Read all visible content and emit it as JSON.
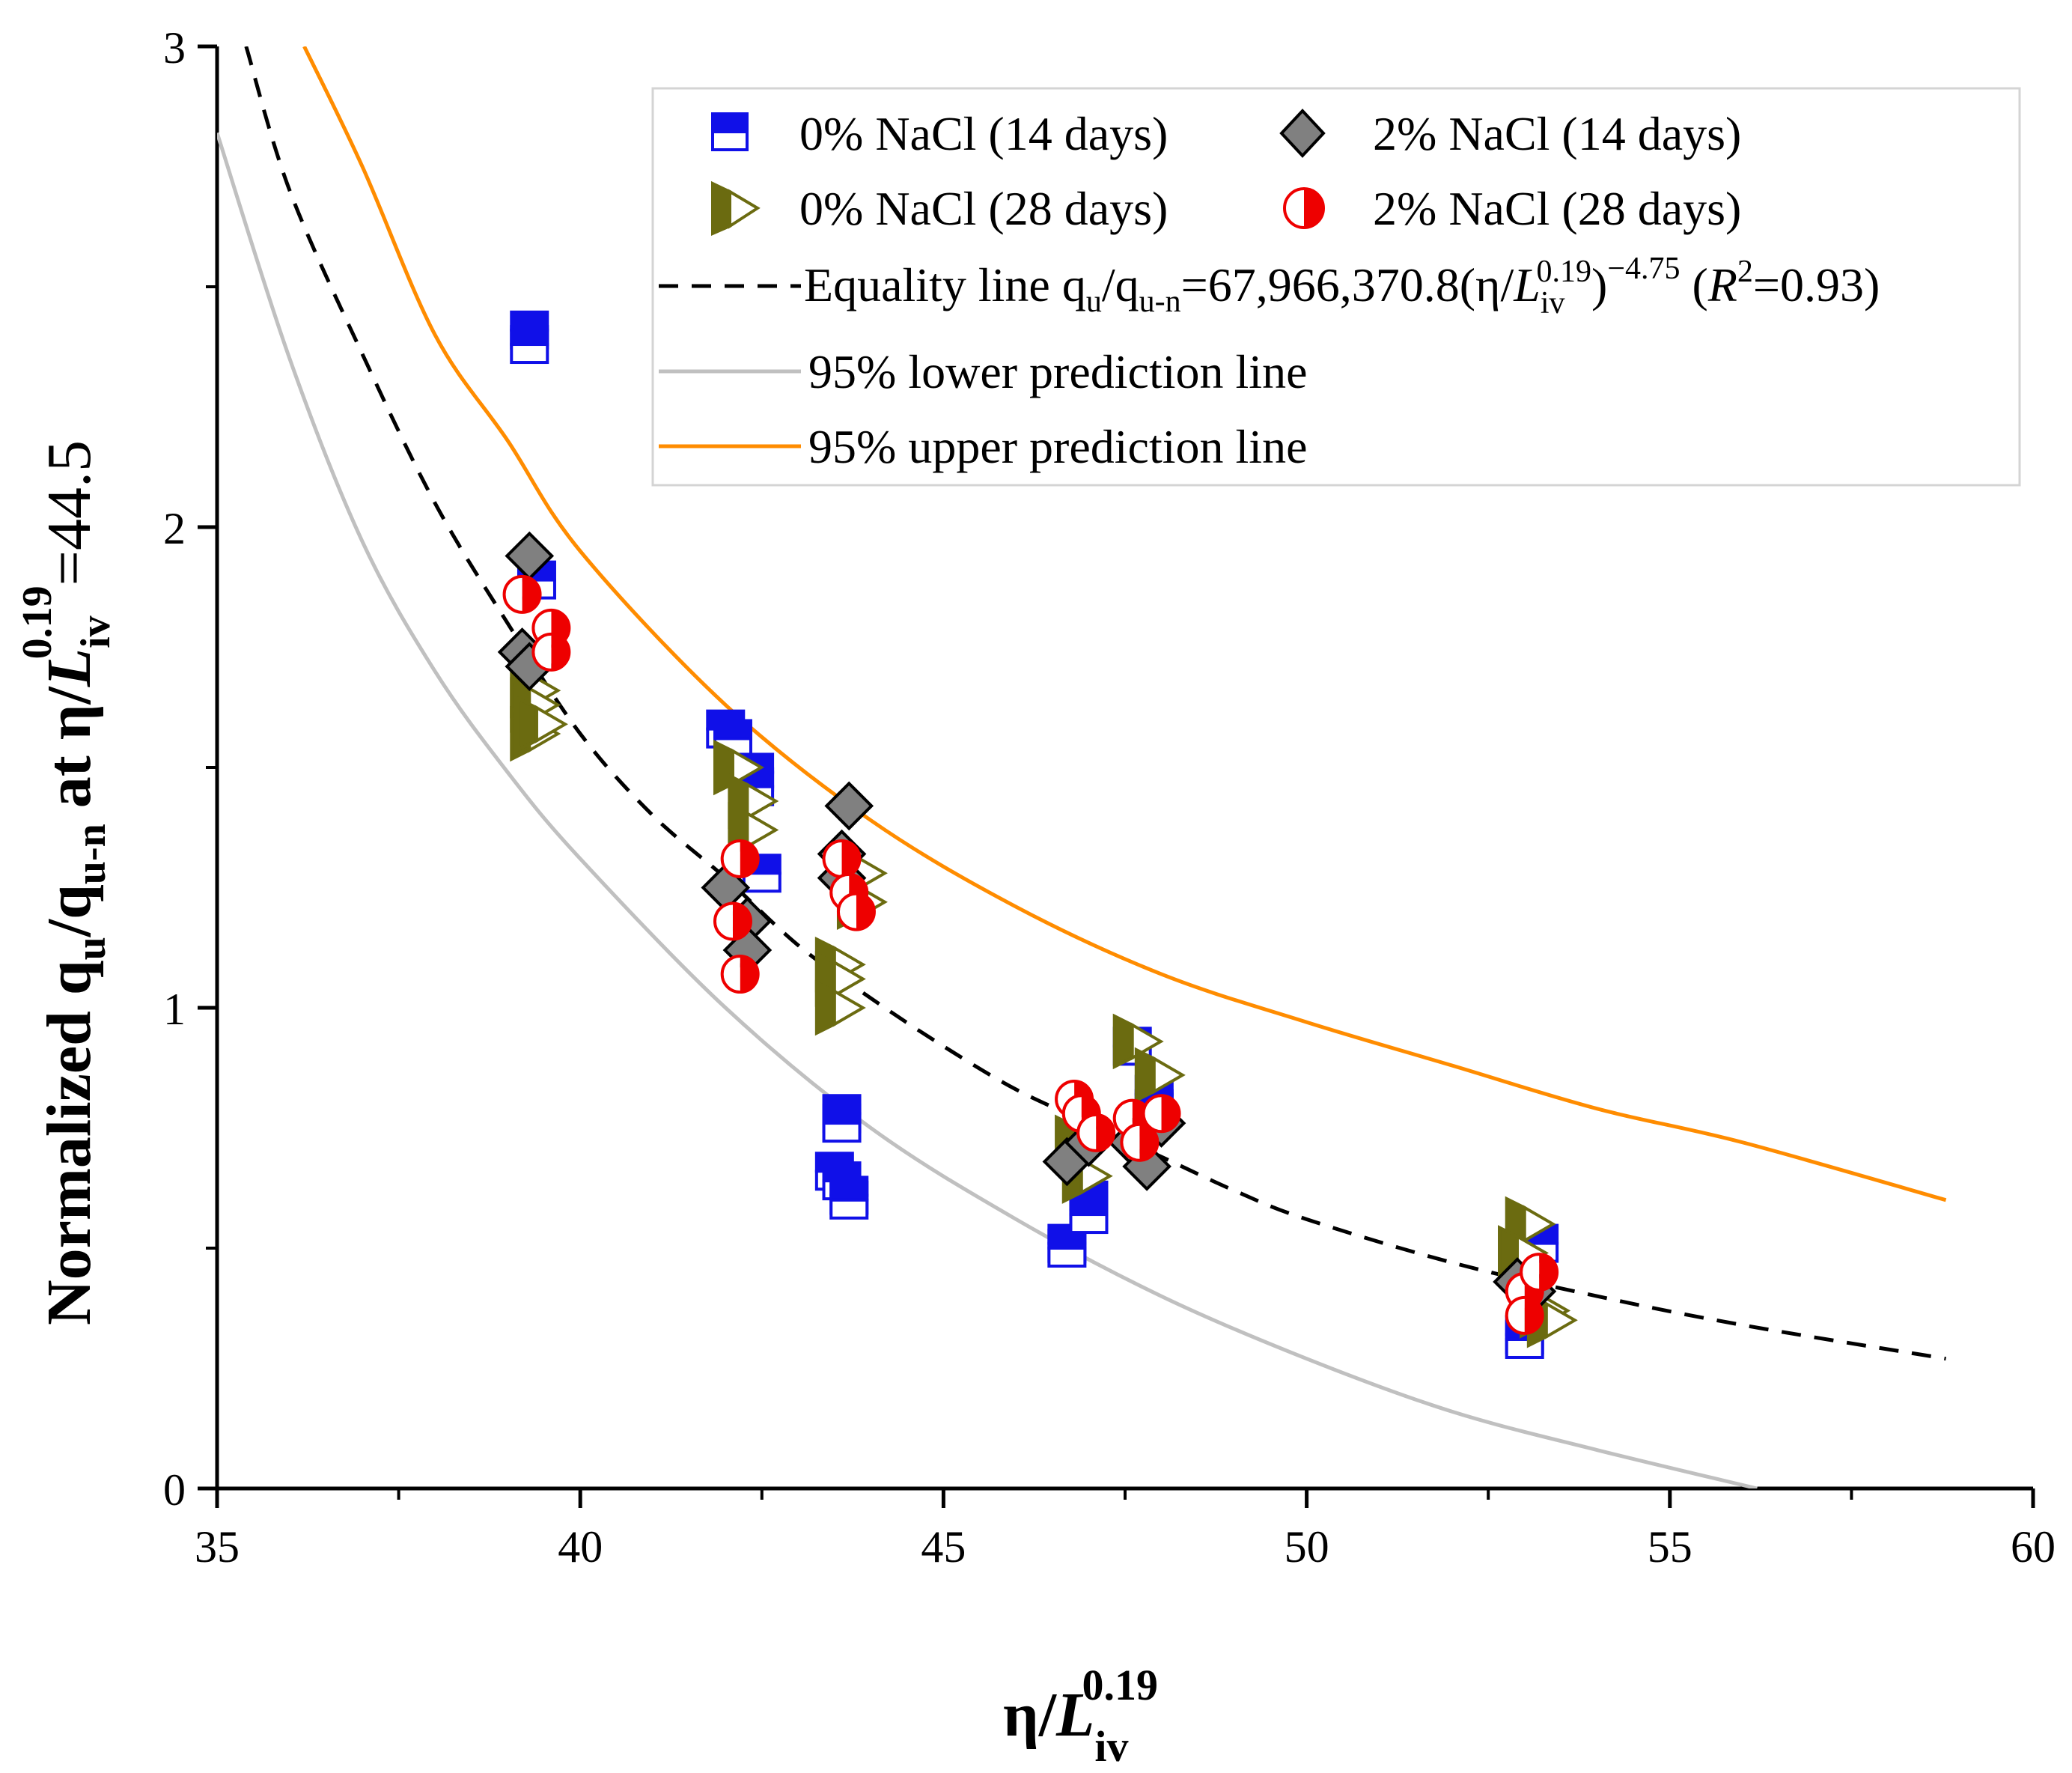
{
  "chart_data": {
    "type": "scatter",
    "xlabel": "η/L_iv^0.19",
    "ylabel": "Normalized q_u/q_u-n at η/L_iv^0.19=44.5",
    "xlim": [
      35,
      60
    ],
    "ylim": [
      0,
      3
    ],
    "x_ticks": [
      "35",
      "40",
      "45",
      "50",
      "55",
      "60"
    ],
    "y_ticks": [
      "0",
      "1",
      "2",
      "3"
    ],
    "grid": false,
    "legend_position": "top-right",
    "series": [
      {
        "name": "0% NaCl (14 days)",
        "marker": "half-square",
        "color": "#1010e8",
        "points": [
          [
            39.3,
            2.41
          ],
          [
            39.3,
            2.38
          ],
          [
            39.4,
            1.89
          ],
          [
            42.0,
            1.58
          ],
          [
            42.1,
            1.56
          ],
          [
            42.4,
            1.49
          ],
          [
            42.4,
            1.46
          ],
          [
            42.5,
            1.28
          ],
          [
            43.6,
            0.78
          ],
          [
            43.6,
            0.76
          ],
          [
            43.5,
            0.66
          ],
          [
            43.6,
            0.64
          ],
          [
            43.7,
            0.61
          ],
          [
            43.7,
            0.6
          ],
          [
            46.7,
            0.51
          ],
          [
            46.7,
            0.5
          ],
          [
            47.0,
            0.6
          ],
          [
            47.0,
            0.58
          ],
          [
            47.0,
            0.57
          ],
          [
            47.6,
            0.92
          ],
          [
            47.9,
            0.82
          ],
          [
            47.9,
            0.79
          ],
          [
            53.0,
            0.32
          ],
          [
            53.0,
            0.31
          ],
          [
            53.2,
            0.51
          ]
        ]
      },
      {
        "name": "0% NaCl (28 days)",
        "marker": "half-triangle-right",
        "color": "#6b6b10",
        "points": [
          [
            39.3,
            1.66
          ],
          [
            39.3,
            1.63
          ],
          [
            39.3,
            1.57
          ],
          [
            39.4,
            1.59
          ],
          [
            42.1,
            1.5
          ],
          [
            42.3,
            1.43
          ],
          [
            42.3,
            1.37
          ],
          [
            43.5,
            1.09
          ],
          [
            43.5,
            1.06
          ],
          [
            43.5,
            1.0
          ],
          [
            43.8,
            1.28
          ],
          [
            43.8,
            1.22
          ],
          [
            47.6,
            0.93
          ],
          [
            47.9,
            0.86
          ],
          [
            46.8,
            0.72
          ],
          [
            46.9,
            0.65
          ],
          [
            53.0,
            0.55
          ],
          [
            52.9,
            0.49
          ],
          [
            53.2,
            0.37
          ],
          [
            53.3,
            0.35
          ]
        ]
      },
      {
        "name": "2% NaCl (14 days)",
        "marker": "diamond",
        "color": "#808080",
        "points": [
          [
            39.3,
            1.94
          ],
          [
            39.2,
            1.74
          ],
          [
            39.3,
            1.71
          ],
          [
            42.0,
            1.25
          ],
          [
            42.3,
            1.18
          ],
          [
            42.3,
            1.12
          ],
          [
            43.7,
            1.42
          ],
          [
            43.6,
            1.32
          ],
          [
            43.6,
            1.27
          ],
          [
            46.7,
            0.68
          ],
          [
            47.0,
            0.72
          ],
          [
            47.6,
            0.72
          ],
          [
            47.8,
            0.67
          ],
          [
            48.0,
            0.76
          ],
          [
            52.9,
            0.43
          ],
          [
            53.1,
            0.41
          ]
        ]
      },
      {
        "name": "2% NaCl (28 days)",
        "marker": "half-circle",
        "color": "#ee0000",
        "points": [
          [
            39.2,
            1.86
          ],
          [
            39.6,
            1.79
          ],
          [
            39.6,
            1.74
          ],
          [
            42.2,
            1.31
          ],
          [
            42.1,
            1.18
          ],
          [
            42.2,
            1.07
          ],
          [
            43.6,
            1.31
          ],
          [
            43.7,
            1.24
          ],
          [
            43.8,
            1.2
          ],
          [
            46.8,
            0.81
          ],
          [
            46.9,
            0.78
          ],
          [
            47.1,
            0.74
          ],
          [
            47.6,
            0.77
          ],
          [
            47.7,
            0.72
          ],
          [
            48.0,
            0.78
          ],
          [
            53.0,
            0.41
          ],
          [
            53.0,
            0.36
          ],
          [
            53.2,
            0.45
          ]
        ]
      }
    ],
    "lines": [
      {
        "name": "Equality line q_u/q_u-n=67,966,370.8(η/L_iv^0.19)^−4.75 (R^2=0.93)",
        "style": "dashed",
        "color": "#000000",
        "points": [
          [
            35.4,
            3.0
          ],
          [
            36,
            2.7
          ],
          [
            37,
            2.36
          ],
          [
            38,
            2.05
          ],
          [
            39,
            1.8
          ],
          [
            40,
            1.57
          ],
          [
            41,
            1.4
          ],
          [
            42,
            1.27
          ],
          [
            43,
            1.13
          ],
          [
            44,
            1.02
          ],
          [
            45,
            0.92
          ],
          [
            46,
            0.83
          ],
          [
            47,
            0.76
          ],
          [
            48,
            0.69
          ],
          [
            49,
            0.62
          ],
          [
            50,
            0.56
          ],
          [
            52,
            0.47
          ],
          [
            54,
            0.4
          ],
          [
            56,
            0.34
          ],
          [
            58.8,
            0.27
          ]
        ]
      },
      {
        "name": "95% lower prediction line",
        "style": "solid",
        "color": "#c0c0c0",
        "points": [
          [
            35.0,
            2.82
          ],
          [
            36,
            2.35
          ],
          [
            37,
            1.97
          ],
          [
            38,
            1.7
          ],
          [
            39,
            1.49
          ],
          [
            40,
            1.31
          ],
          [
            42,
            1.0
          ],
          [
            44,
            0.75
          ],
          [
            46,
            0.56
          ],
          [
            48,
            0.4
          ],
          [
            50,
            0.27
          ],
          [
            52,
            0.16
          ],
          [
            54,
            0.08
          ],
          [
            56.2,
            0.0
          ]
        ]
      },
      {
        "name": "95% upper prediction line",
        "style": "solid",
        "color": "#ff8c00",
        "points": [
          [
            36.2,
            3.0
          ],
          [
            37,
            2.75
          ],
          [
            38,
            2.4
          ],
          [
            39,
            2.18
          ],
          [
            40,
            1.95
          ],
          [
            42,
            1.63
          ],
          [
            44,
            1.39
          ],
          [
            46,
            1.21
          ],
          [
            48,
            1.07
          ],
          [
            50,
            0.97
          ],
          [
            52,
            0.88
          ],
          [
            54,
            0.79
          ],
          [
            56,
            0.72
          ],
          [
            58.8,
            0.6
          ]
        ]
      }
    ],
    "legend": {
      "entry_0_14": "0% NaCl (14 days)",
      "entry_0_28": "0% NaCl (28 days)",
      "entry_2_14": "2% NaCl (14 days)",
      "entry_2_28": "2% NaCl (28 days)",
      "eq_prefix": "Equality line q",
      "eq_mid": "=67,966,370.8(η/",
      "eq_coef": "0.19",
      "eq_exp": "−4.75",
      "eq_r": "=0.93)",
      "lower": "95% lower prediction line",
      "upper": "95% upper prediction line"
    },
    "sub": {
      "u": "u",
      "un": "u-n",
      "iv": "iv",
      "L": "L",
      "R": "R",
      "two": "2",
      "slash_q": "/q",
      "close_paren": ")",
      "open_r": " (",
      "eta_slash": "η/"
    },
    "ylabel_parts": {
      "prefix": "Normalized q",
      "slash_q": "/q",
      "at": " at η/",
      "exp": "0.19",
      "value": "=44.5"
    }
  }
}
